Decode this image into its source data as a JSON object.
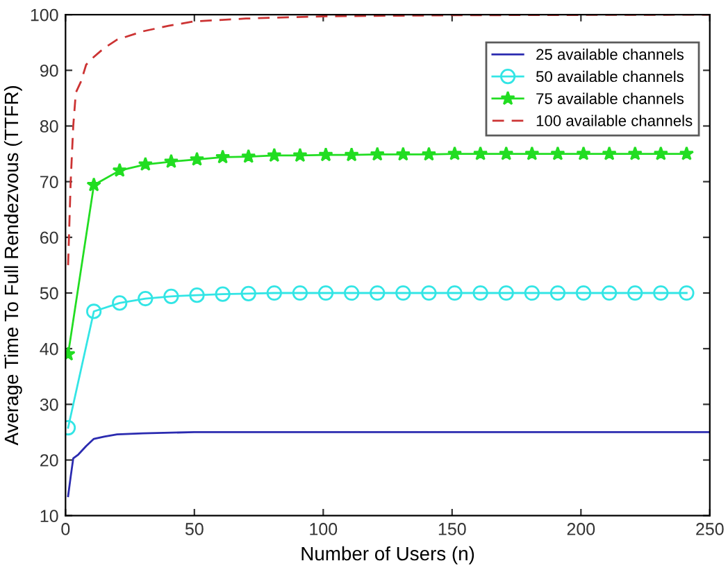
{
  "chart_data": {
    "type": "line",
    "xlabel": "Number of Users (n)",
    "ylabel": "Average Time To Full Rendezvous (TTFR)",
    "xlim": [
      0,
      250
    ],
    "xticks": [
      0,
      50,
      100,
      150,
      200,
      250
    ],
    "ylim": [
      10,
      100
    ],
    "yticks": [
      10,
      20,
      30,
      40,
      50,
      60,
      70,
      80,
      90,
      100
    ],
    "grid": false,
    "legend": "top right",
    "series": [
      {
        "name": "25 available channels",
        "color": "#2b2bb0",
        "marker": "none",
        "line_style": "solid",
        "x": [
          1,
          2,
          3,
          5,
          8,
          11,
          15,
          20,
          30,
          50,
          100,
          250
        ],
        "values": [
          13.5,
          17,
          20.3,
          21,
          22.5,
          23.8,
          24.2,
          24.6,
          24.8,
          25,
          25,
          25
        ]
      },
      {
        "name": "50 available channels",
        "color": "#33e5e5",
        "marker": "circle",
        "line_style": "solid",
        "x": [
          1,
          11,
          21,
          31,
          41,
          51,
          61,
          71,
          81,
          91,
          101,
          111,
          121,
          131,
          141,
          151,
          161,
          171,
          181,
          191,
          201,
          211,
          221,
          231,
          241
        ],
        "values": [
          25.8,
          46.7,
          48.2,
          49.0,
          49.4,
          49.6,
          49.8,
          49.9,
          50,
          50,
          50,
          50,
          50,
          50,
          50,
          50,
          50,
          50,
          50,
          50,
          50,
          50,
          50,
          50,
          50
        ]
      },
      {
        "name": "75 available channels",
        "color": "#22dd22",
        "marker": "star",
        "line_style": "solid",
        "x": [
          1,
          11,
          21,
          31,
          41,
          51,
          61,
          71,
          81,
          91,
          101,
          111,
          121,
          131,
          141,
          151,
          161,
          171,
          181,
          191,
          201,
          211,
          221,
          231,
          241
        ],
        "values": [
          39,
          69.4,
          72,
          73.1,
          73.6,
          74,
          74.4,
          74.5,
          74.7,
          74.7,
          74.8,
          74.8,
          74.9,
          74.9,
          74.9,
          75,
          75,
          75,
          75,
          75,
          75,
          75,
          75,
          75,
          75
        ]
      },
      {
        "name": "100 available channels",
        "color": "#cc3333",
        "marker": "none",
        "line_style": "dashed",
        "x": [
          1,
          2,
          3,
          4,
          6,
          8,
          10,
          15,
          20,
          30,
          40,
          50,
          70,
          100,
          150,
          250
        ],
        "values": [
          55,
          70,
          80,
          86,
          88,
          91,
          92,
          94,
          95.5,
          97,
          98,
          98.8,
          99.3,
          99.7,
          99.9,
          100
        ]
      }
    ]
  }
}
